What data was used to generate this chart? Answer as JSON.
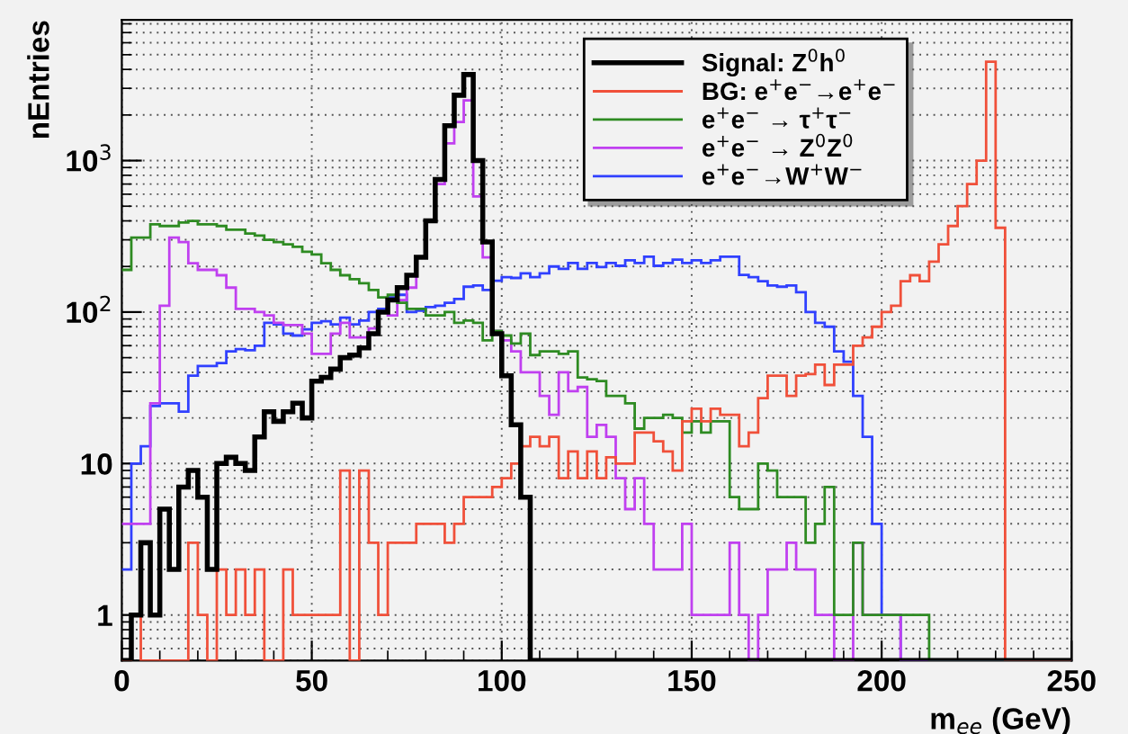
{
  "chart_data": {
    "type": "histogram",
    "xlabel": "m$_{ee}$ (GeV)",
    "ylabel": "nEntries",
    "bins": [
      0,
      2.5,
      5,
      7.5,
      10,
      12.5,
      15,
      17.5,
      20,
      22.5,
      25,
      27.5,
      30,
      32.5,
      35,
      37.5,
      40,
      42.5,
      45,
      47.5,
      50,
      52.5,
      55,
      57.5,
      60,
      62.5,
      65,
      67.5,
      70,
      72.5,
      75,
      77.5,
      80,
      82.5,
      85,
      87.5,
      90,
      92.5,
      95,
      97.5,
      100,
      102.5,
      105,
      107.5,
      110,
      112.5,
      115,
      117.5,
      120,
      122.5,
      125,
      127.5,
      130,
      132.5,
      135,
      137.5,
      140,
      142.5,
      145,
      147.5,
      150,
      152.5,
      155,
      157.5,
      160,
      162.5,
      165,
      167.5,
      170,
      172.5,
      175,
      177.5,
      180,
      182.5,
      185,
      187.5,
      190,
      192.5,
      195,
      197.5,
      200,
      202.5,
      205,
      207.5,
      210,
      212.5,
      215,
      217.5,
      220,
      222.5,
      225,
      227.5,
      230,
      232.5,
      235,
      237.5,
      240,
      242.5,
      245,
      247.5,
      250
    ],
    "series": [
      {
        "name": "Signal: Z$^{0}$h$^{0}$",
        "color": "#000000",
        "values": [
          null,
          1,
          3,
          1,
          5,
          2,
          7,
          9,
          6,
          2,
          10,
          11,
          10,
          9,
          15,
          22,
          19,
          22,
          25,
          20,
          35,
          37,
          42,
          50,
          52,
          58,
          72,
          100,
          120,
          145,
          175,
          230,
          400,
          750,
          1700,
          2700,
          3700,
          1000,
          290,
          72,
          38,
          18,
          6,
          null,
          null,
          null,
          null,
          null,
          null,
          null,
          null,
          null,
          null,
          null,
          null,
          null,
          null,
          null,
          null,
          null,
          null,
          null,
          null,
          null,
          null,
          null,
          null,
          null,
          null,
          null,
          null,
          null,
          null,
          null,
          null,
          null,
          null,
          null,
          null,
          null,
          null,
          null,
          null,
          null,
          null,
          null,
          null,
          null,
          null,
          null,
          null,
          null,
          null,
          null,
          null,
          null,
          null,
          null,
          null,
          null
        ]
      },
      {
        "name": "BG: e$^{+}$e$^{−}$→e$^{+}$e$^{−}$",
        "color": "#f0503a",
        "values": [
          null,
          1,
          null,
          null,
          null,
          null,
          null,
          3,
          1,
          null,
          2,
          1,
          2,
          1,
          2,
          null,
          null,
          2,
          1,
          1,
          1,
          1,
          1,
          9,
          null,
          9,
          3,
          1,
          3,
          3,
          3,
          4,
          4,
          4,
          3,
          4,
          6,
          6,
          6,
          7,
          8,
          10,
          13,
          15,
          13,
          15,
          8,
          12,
          8,
          12,
          8,
          11,
          10,
          10,
          16,
          16,
          14,
          12,
          9,
          19,
          23,
          19,
          23,
          21,
          21,
          13,
          16,
          27,
          38,
          38,
          28,
          38,
          39,
          45,
          33,
          45,
          45,
          60,
          68,
          80,
          100,
          110,
          160,
          175,
          160,
          215,
          280,
          370,
          500,
          700,
          1000,
          4500,
          360,
          null,
          null,
          null,
          null,
          null,
          null,
          null
        ]
      },
      {
        "name": "e$^{+}$e$^{−}$ → τ$^{+}$τ$^{−}$",
        "color": "#2e8b22",
        "values": [
          190,
          310,
          310,
          380,
          370,
          370,
          390,
          400,
          380,
          380,
          370,
          350,
          350,
          330,
          320,
          300,
          290,
          280,
          270,
          250,
          240,
          210,
          190,
          175,
          165,
          155,
          140,
          125,
          130,
          115,
          105,
          105,
          95,
          95,
          100,
          85,
          88,
          85,
          65,
          75,
          70,
          62,
          72,
          52,
          55,
          55,
          53,
          55,
          37,
          36,
          35,
          28,
          28,
          25,
          17,
          20,
          20,
          21,
          20,
          16,
          19,
          16,
          19,
          19,
          6,
          5,
          5,
          10,
          9,
          6,
          6,
          6,
          3,
          4,
          7,
          1,
          1,
          3,
          1,
          1,
          1,
          1,
          1,
          1,
          1,
          null,
          null,
          null,
          null,
          null,
          null,
          null,
          null,
          null,
          null,
          null,
          null,
          null,
          null,
          null
        ]
      },
      {
        "name": "e$^{+}$e$^{−}$ → Z$^{0}$Z$^{0}$",
        "color": "#c040f0",
        "values": [
          4,
          4,
          4,
          25,
          110,
          310,
          290,
          210,
          190,
          190,
          175,
          145,
          105,
          105,
          100,
          95,
          85,
          82,
          82,
          72,
          53,
          53,
          72,
          85,
          68,
          68,
          78,
          100,
          95,
          120,
          145,
          230,
          400,
          700,
          1300,
          1800,
          2500,
          580,
          230,
          75,
          65,
          55,
          40,
          40,
          28,
          21,
          40,
          30,
          32,
          15,
          18,
          15,
          8,
          5,
          8,
          4,
          2,
          2,
          2,
          4,
          1,
          1,
          1,
          1,
          3,
          1,
          null,
          1,
          2,
          2,
          3,
          2,
          2,
          1,
          1,
          null,
          null,
          3,
          1,
          1,
          1,
          1,
          null,
          null,
          null,
          null,
          null,
          null,
          null,
          null,
          null,
          null,
          null,
          null,
          null,
          null,
          null,
          null,
          null,
          null
        ]
      },
      {
        "name": "e$^{+}$e$^{−}$→W$^{+}$W$^{−}$",
        "color": "#3040ff",
        "values": [
          2,
          10,
          13,
          24,
          25,
          25,
          22,
          38,
          44,
          44,
          46,
          55,
          57,
          56,
          60,
          85,
          83,
          72,
          70,
          77,
          85,
          87,
          83,
          92,
          83,
          88,
          100,
          105,
          125,
          130,
          100,
          102,
          108,
          110,
          115,
          122,
          147,
          150,
          140,
          161,
          170,
          168,
          180,
          170,
          180,
          200,
          193,
          211,
          193,
          211,
          198,
          211,
          202,
          220,
          211,
          232,
          202,
          211,
          222,
          211,
          220,
          211,
          220,
          232,
          232,
          176,
          170,
          160,
          150,
          147,
          150,
          135,
          100,
          85,
          80,
          55,
          47,
          28,
          15,
          4,
          1,
          1,
          null,
          null,
          null,
          null,
          null,
          null,
          null,
          null,
          null,
          null,
          null,
          null,
          null,
          null,
          null,
          null,
          null,
          null
        ]
      }
    ],
    "xlim": [
      0,
      250
    ],
    "xticks": [
      0,
      50,
      100,
      150,
      200,
      250
    ],
    "ylim": [
      0.5,
      8500
    ],
    "yticks": [
      1,
      10,
      {
        "value": 100,
        "label": "10$^{2}$"
      },
      {
        "value": 1000,
        "label": "10$^{3}$"
      }
    ],
    "log": true,
    "grid": true,
    "legend": "top right"
  }
}
